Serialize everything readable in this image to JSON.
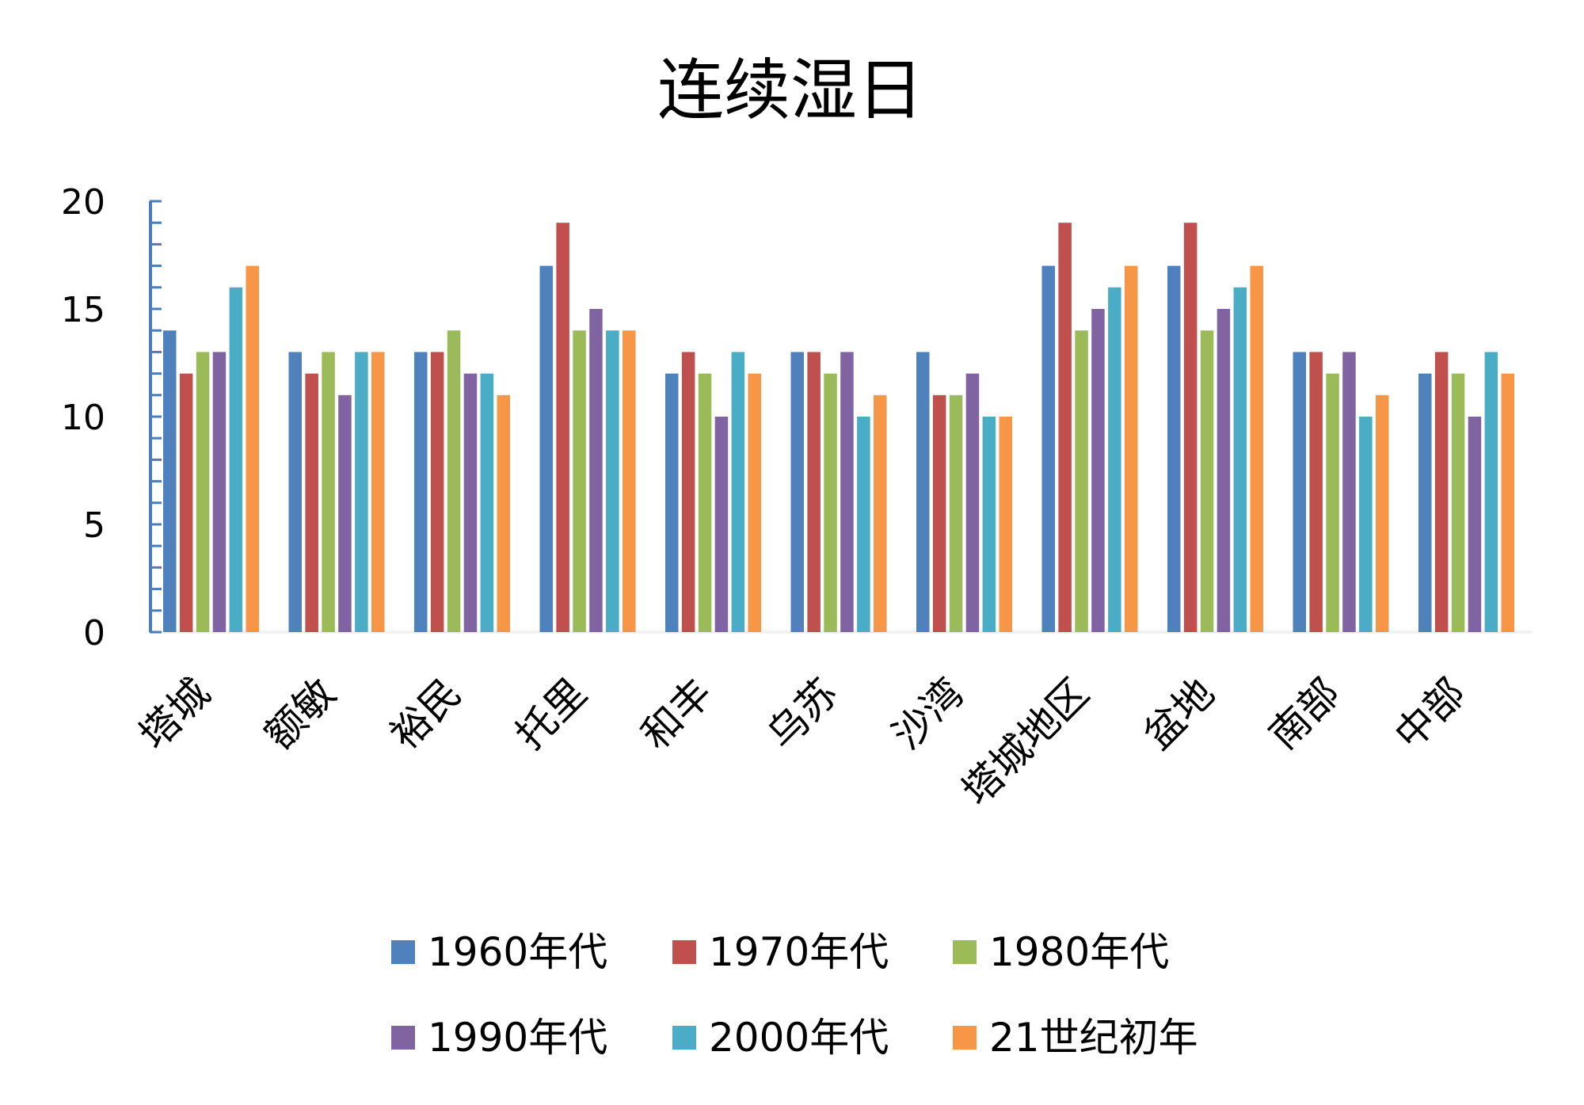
{
  "chart_data": {
    "type": "bar",
    "title": "连续湿日",
    "xlabel": "",
    "ylabel": "",
    "ylim": [
      0,
      20
    ],
    "yticks": [
      "0",
      "5",
      "10",
      "15",
      "20"
    ],
    "categories": [
      "塔城",
      "额敏",
      "裕民",
      "托里",
      "和丰",
      "乌苏",
      "沙湾",
      "塔城地区",
      "盆地",
      "南部",
      "中部"
    ],
    "legend_position": "bottom",
    "series": [
      {
        "name": "1960年代",
        "color": "#4F81BD",
        "values": [
          14,
          13,
          13,
          17,
          12,
          13,
          13,
          17,
          17,
          13,
          12
        ]
      },
      {
        "name": "1970年代",
        "color": "#C0504D",
        "values": [
          12,
          12,
          13,
          19,
          13,
          13,
          11,
          19,
          19,
          13,
          13
        ]
      },
      {
        "name": "1980年代",
        "color": "#9BBB59",
        "values": [
          13,
          13,
          14,
          14,
          12,
          12,
          11,
          14,
          14,
          12,
          12
        ]
      },
      {
        "name": "1990年代",
        "color": "#8064A2",
        "values": [
          13,
          11,
          12,
          15,
          10,
          13,
          12,
          15,
          15,
          13,
          10
        ]
      },
      {
        "name": "2000年代",
        "color": "#4BACC6",
        "values": [
          16,
          13,
          12,
          14,
          13,
          10,
          10,
          16,
          16,
          10,
          13
        ]
      },
      {
        "name": "21世纪初年",
        "color": "#F79646",
        "values": [
          17,
          13,
          11,
          14,
          12,
          11,
          10,
          17,
          17,
          11,
          12
        ]
      }
    ]
  },
  "axis_color": "#4A7EBB"
}
